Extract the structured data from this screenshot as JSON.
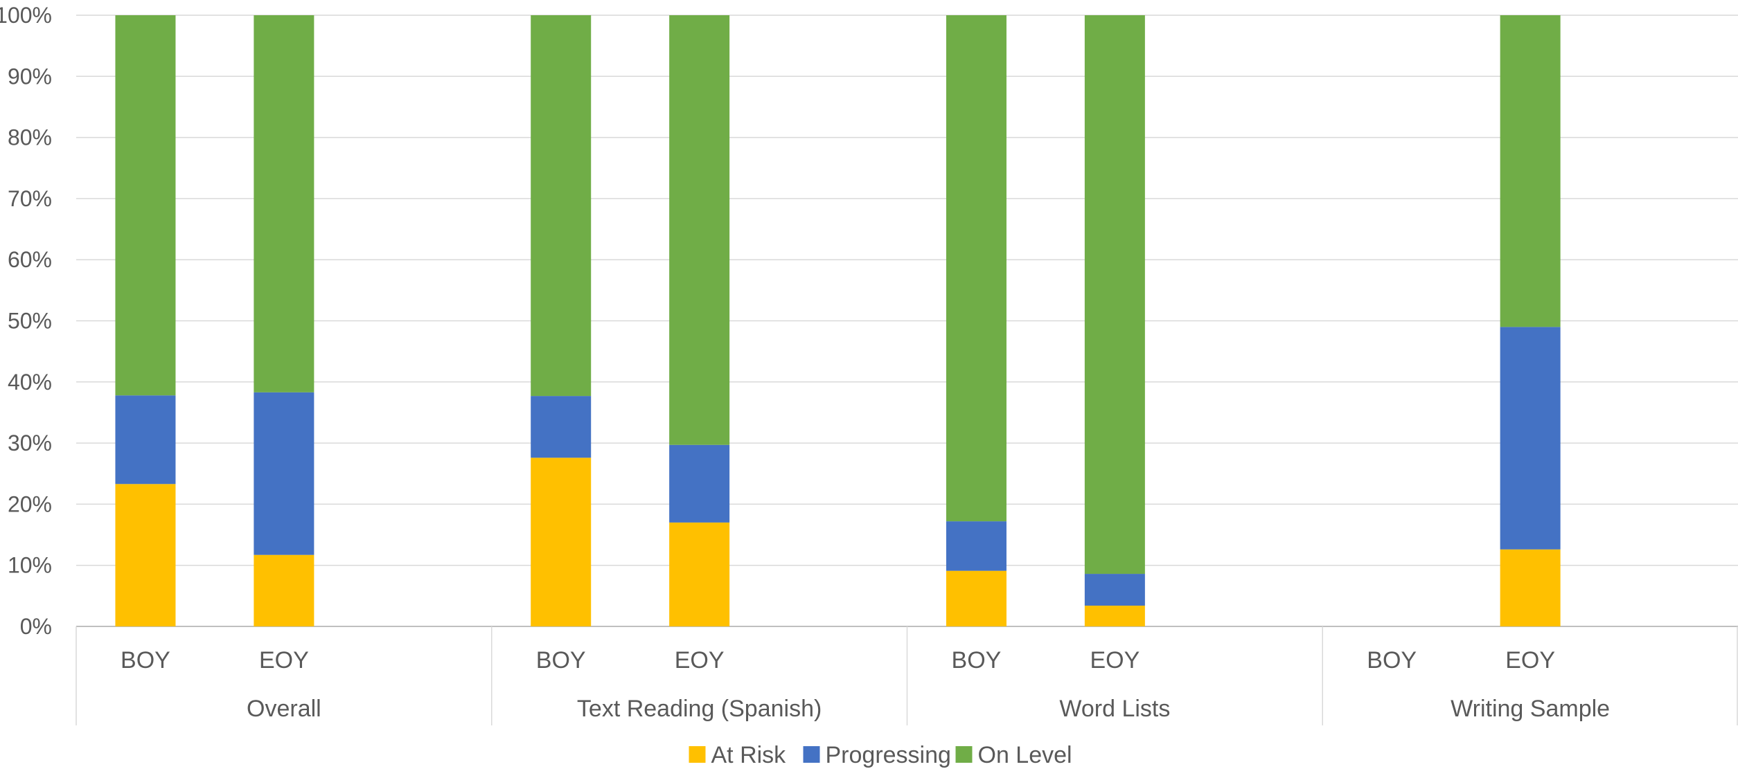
{
  "chart_data": {
    "type": "bar",
    "stacked": true,
    "percent_stacked": true,
    "groups": [
      "Overall",
      "Text Reading (Spanish)",
      "Word Lists",
      "Writing Sample"
    ],
    "periods": [
      "BOY",
      "EOY"
    ],
    "categories": [
      {
        "group": "Overall",
        "period": "BOY"
      },
      {
        "group": "Overall",
        "period": "EOY"
      },
      {
        "group": "Text Reading (Spanish)",
        "period": "BOY"
      },
      {
        "group": "Text Reading (Spanish)",
        "period": "EOY"
      },
      {
        "group": "Word Lists",
        "period": "BOY"
      },
      {
        "group": "Word Lists",
        "period": "EOY"
      },
      {
        "group": "Writing Sample",
        "period": "BOY"
      },
      {
        "group": "Writing Sample",
        "period": "EOY"
      }
    ],
    "series": [
      {
        "name": "At Risk",
        "color": "#FFC000",
        "values": [
          23.3,
          11.7,
          27.6,
          17.0,
          9.1,
          3.4,
          null,
          12.6
        ]
      },
      {
        "name": "Progressing",
        "color": "#4472C4",
        "values": [
          14.5,
          26.6,
          10.1,
          12.7,
          8.1,
          5.2,
          null,
          36.4
        ]
      },
      {
        "name": "On Level",
        "color": "#70AD47",
        "values": [
          62.2,
          61.7,
          62.3,
          70.3,
          82.8,
          91.4,
          null,
          51.0
        ]
      }
    ],
    "y_ticks": [
      "0%",
      "10%",
      "20%",
      "30%",
      "40%",
      "50%",
      "60%",
      "70%",
      "80%",
      "90%",
      "100%"
    ],
    "ylim": [
      0,
      100
    ],
    "grid": true,
    "legend_position": "bottom",
    "title": "",
    "xlabel": "",
    "ylabel": ""
  }
}
